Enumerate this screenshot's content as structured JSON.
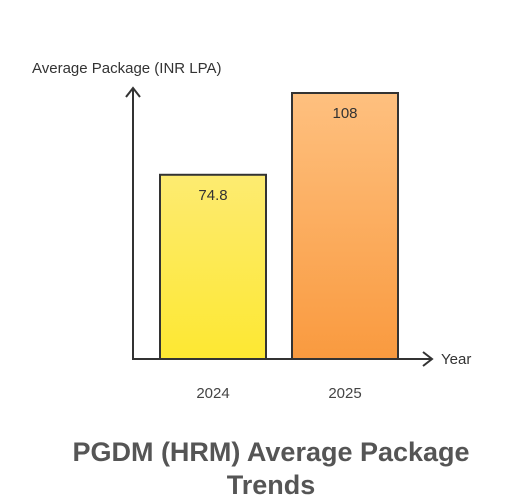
{
  "chart_data": {
    "type": "bar",
    "title": "PGDM (HRM) Average Package Trends",
    "xlabel": "Year",
    "ylabel": "Average Package (INR LPA)",
    "categories": [
      "2024",
      "2025"
    ],
    "values": [
      74.8,
      108
    ],
    "value_labels": [
      "74.8",
      "108"
    ],
    "ylim": [
      0,
      108
    ],
    "grid": false,
    "legend": "none",
    "colors": {
      "bar_2024_top": "#FDEB71",
      "bar_2024_bottom": "#FDE832",
      "bar_2025_top": "#FEC07F",
      "bar_2025_bottom": "#F99A3F",
      "axis": "#333333",
      "title": "#555555"
    }
  }
}
